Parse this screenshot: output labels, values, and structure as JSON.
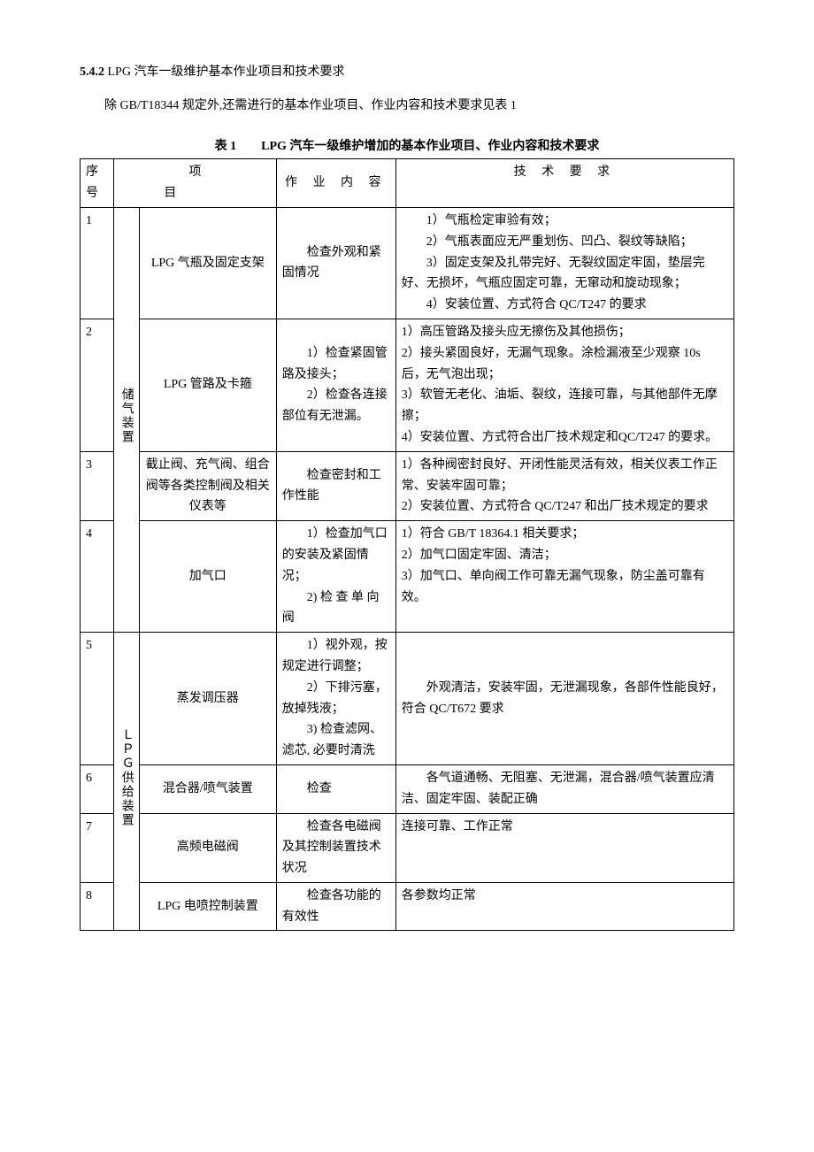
{
  "heading": {
    "number": "5.4.2",
    "title": "LPG 汽车一级维护基本作业项目和技术要求"
  },
  "intro": "除 GB/T18344 规定外,还需进行的基本作业项目、作业内容和技术要求见表 1",
  "table": {
    "caption": "表 1　　LPG 汽车一级维护增加的基本作业项目、作业内容和技术要求",
    "headers": {
      "seq": "序号",
      "project_label": "项目",
      "content": "作 业 内 容",
      "tech": "技 术 要 求"
    },
    "groups": [
      {
        "label": "储气装置",
        "rowStart": 0,
        "rowspan": 4
      },
      {
        "label": "ＬＰＧ供给装置",
        "rowStart": 4,
        "rowspan": 4
      }
    ],
    "rows": [
      {
        "seq": "1",
        "item": "LPG 气瓶及固定支架",
        "content": "　　检查外观和紧固情况",
        "tech": "　　1）气瓶检定审验有效；\n　　2）气瓶表面应无严重划伤、凹凸、裂纹等缺陷；\n　　3）固定支架及扎带完好、无裂纹固定牢固，垫层完好、无损坏，气瓶应固定可靠，无窜动和旋动现象；\n　　4）安装位置、方式符合 QC/T247 的要求"
      },
      {
        "seq": "2",
        "item": "LPG 管路及卡箍",
        "content": "　　1）检查紧固管路及接头；\n　　2）检查各连接部位有无泄漏。",
        "tech": "1）高压管路及接头应无擦伤及其他损伤；\n2）接头紧固良好，无漏气现象。涂检漏液至少观察 10s 后，无气泡出现；\n3）软管无老化、油垢、裂纹，连接可靠，与其他部件无摩擦；\n4）安装位置、方式符合出厂技术规定和QC/T247 的要求。"
      },
      {
        "seq": "3",
        "item": "截止阀、充气阀、组合阀等各类控制阀及相关仪表等",
        "content": "　　检查密封和工作性能",
        "tech": "1）各种阀密封良好、开闭性能灵活有效，相关仪表工作正常、安装牢固可靠；\n2）安装位置、方式符合 QC/T247 和出厂技术规定的要求"
      },
      {
        "seq": "4",
        "item": "加气口",
        "content": "　　1）检查加气口的安装及紧固情况；\n　　2) 检 查 单 向阀",
        "tech": "1）符合 GB/T 18364.1 相关要求；\n2）加气口固定牢固、清洁；\n3）加气口、单向阀工作可靠无漏气现象，防尘盖可靠有效。"
      },
      {
        "seq": "5",
        "item": "蒸发调压器",
        "content": "　　1）视外观，按规定进行调整；\n　　2）下排污塞，放掉残液；\n　　3) 检查滤网、滤芯, 必要时清洗",
        "tech": "　　外观清洁，安装牢固，无泄漏现象，各部件性能良好，符合 QC/T672 要求"
      },
      {
        "seq": "6",
        "item": "混合器/喷气装置",
        "content": "　　检查",
        "tech": "　　各气道通畅、无阻塞、无泄漏，混合器/喷气装置应清洁、固定牢固、装配正确"
      },
      {
        "seq": "7",
        "item": "高频电磁阀",
        "content": "　　检查各电磁阀及其控制装置技术状况",
        "tech": "连接可靠、工作正常"
      },
      {
        "seq": "8",
        "item": "LPG 电喷控制装置",
        "content": "　　检查各功能的有效性",
        "tech": "各参数均正常"
      }
    ]
  }
}
